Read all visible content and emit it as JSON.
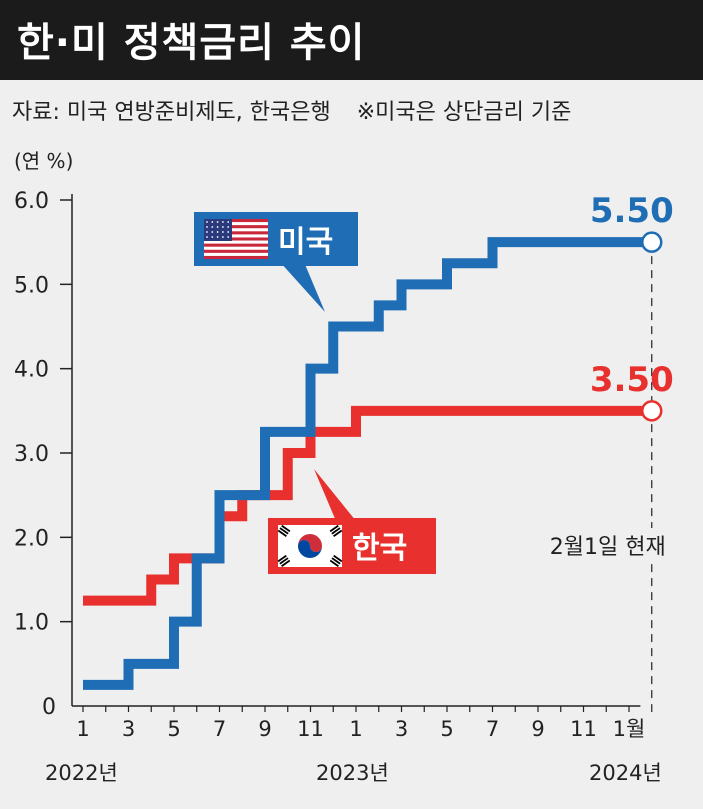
{
  "title": "한·미 정책금리 추이",
  "source": "자료: 미국 연방준비제도, 한국은행",
  "note": "※미국은 상단금리 기준",
  "colors": {
    "us": "#1f6db5",
    "korea": "#e8312e",
    "header_bg": "#1b1b1b",
    "background": "#efefef",
    "axis": "#222222"
  },
  "chart_data": {
    "type": "line",
    "step": true,
    "unit_label": "(연 %)",
    "ylim": [
      0,
      6.0
    ],
    "yticks": [
      "0",
      "1.0",
      "2.0",
      "3.0",
      "4.0",
      "5.0",
      "6.0"
    ],
    "xticks": [
      "1",
      "3",
      "5",
      "7",
      "9",
      "11",
      "1",
      "3",
      "5",
      "7",
      "9",
      "11",
      "1월"
    ],
    "year_labels": [
      "2022년",
      "2023년",
      "2024년"
    ],
    "grid": false,
    "series": [
      {
        "name": "미국",
        "flag": "us-flag",
        "end_value_label": "5.50",
        "points": [
          {
            "x": "2022-01",
            "y": 0.25
          },
          {
            "x": "2022-03",
            "y": 0.5
          },
          {
            "x": "2022-05",
            "y": 1.0
          },
          {
            "x": "2022-06",
            "y": 1.75
          },
          {
            "x": "2022-07",
            "y": 2.5
          },
          {
            "x": "2022-09",
            "y": 3.25
          },
          {
            "x": "2022-11",
            "y": 4.0
          },
          {
            "x": "2022-12",
            "y": 4.5
          },
          {
            "x": "2023-02",
            "y": 4.75
          },
          {
            "x": "2023-03",
            "y": 5.0
          },
          {
            "x": "2023-05",
            "y": 5.25
          },
          {
            "x": "2023-07",
            "y": 5.5
          },
          {
            "x": "2024-02",
            "y": 5.5
          }
        ]
      },
      {
        "name": "한국",
        "flag": "korea-flag",
        "end_value_label": "3.50",
        "points": [
          {
            "x": "2022-01",
            "y": 1.25
          },
          {
            "x": "2022-04",
            "y": 1.5
          },
          {
            "x": "2022-05",
            "y": 1.75
          },
          {
            "x": "2022-07",
            "y": 2.25
          },
          {
            "x": "2022-08",
            "y": 2.5
          },
          {
            "x": "2022-10",
            "y": 3.0
          },
          {
            "x": "2022-11",
            "y": 3.25
          },
          {
            "x": "2023-01",
            "y": 3.5
          },
          {
            "x": "2024-02",
            "y": 3.5
          }
        ]
      }
    ],
    "annotation": "2월1일 현재"
  }
}
